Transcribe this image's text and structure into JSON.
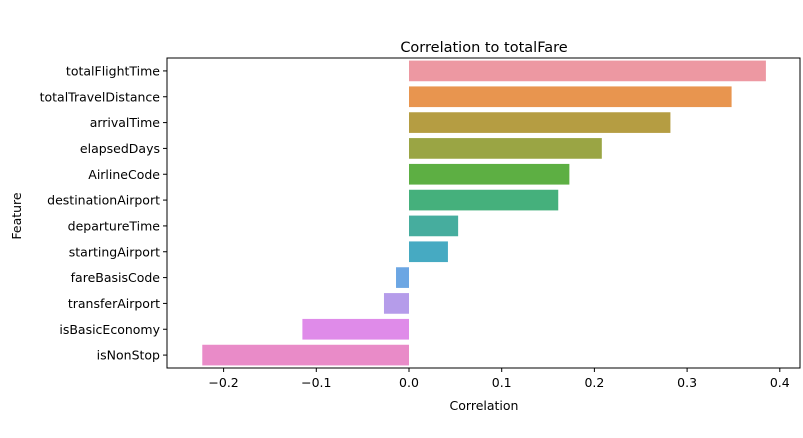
{
  "chart_data": {
    "type": "bar",
    "orientation": "horizontal",
    "title": "Correlation to totalFare",
    "xlabel": "Correlation",
    "ylabel": "Feature",
    "xlim": [
      -0.25,
      0.41
    ],
    "xticks": [
      -0.2,
      -0.1,
      0.0,
      0.1,
      0.2,
      0.3,
      0.4
    ],
    "xtick_labels": [
      "−0.2",
      "−0.1",
      "0.0",
      "0.1",
      "0.2",
      "0.3",
      "0.4"
    ],
    "categories": [
      "totalFlightTime",
      "totalTravelDistance",
      "arrivalTime",
      "elapsedDays",
      "AirlineCode",
      "destinationAirport",
      "departureTime",
      "startingAirport",
      "fareBasisCode",
      "transferAirport",
      "isBasicEconomy",
      "isNonStop"
    ],
    "values": [
      0.385,
      0.348,
      0.282,
      0.208,
      0.173,
      0.161,
      0.053,
      0.042,
      -0.014,
      -0.027,
      -0.115,
      -0.223
    ],
    "colors": [
      "#ed98a2",
      "#e8954f",
      "#b59d42",
      "#9aa544",
      "#5daf43",
      "#45b07c",
      "#46ad9e",
      "#46aac2",
      "#6ca6e3",
      "#b59cea",
      "#df8be9",
      "#e98bc8"
    ],
    "grid": false,
    "legend": "none"
  }
}
